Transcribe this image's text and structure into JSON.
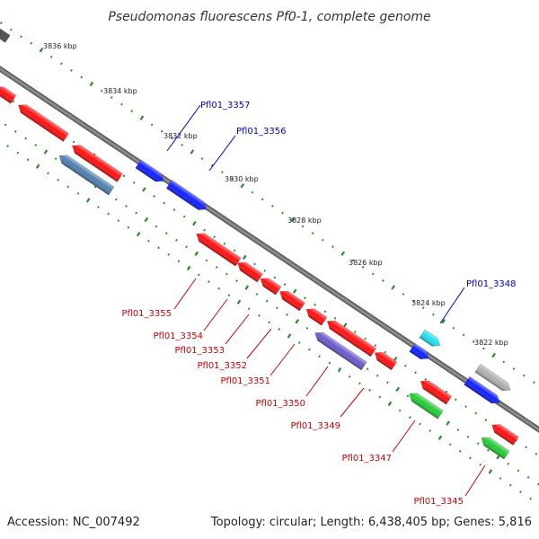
{
  "title": "Pseudomonas fluorescens Pf0-1, complete genome",
  "footer": {
    "accession": "Accession: NC_007492",
    "summary": "Topology: circular; Length: 6,438,405 bp; Genes: 5,816"
  },
  "colors": {
    "backbone": "#7a7a7a",
    "tick_dots": "#2a8a2a",
    "label_forward": "#0000cc",
    "label_reverse": "#cc0000",
    "gene_red": "#ff1010",
    "gene_blue": "#1020ff",
    "gene_green": "#22cc33",
    "gene_steel": "#4f7fb0",
    "gene_purple": "#6a5acd",
    "gene_cyan": "#20e0f0",
    "gene_gray": "#b0b0b0"
  },
  "ruler": {
    "labels": [
      "3836 kbp",
      "3834 kbp",
      "3832 kbp",
      "3830 kbp",
      "3828 kbp",
      "3826 kbp",
      "3824 kbp",
      "3822 kbp"
    ]
  },
  "gene_labels": {
    "forward": [
      "Pfl01_3357",
      "Pfl01_3356",
      "Pfl01_3348"
    ],
    "reverse": [
      "Pfl01_3355",
      "Pfl01_3354",
      "Pfl01_3353",
      "Pfl01_3352",
      "Pfl01_3351",
      "Pfl01_3350",
      "Pfl01_3349",
      "Pfl01_3347",
      "Pfl01_3345"
    ]
  }
}
